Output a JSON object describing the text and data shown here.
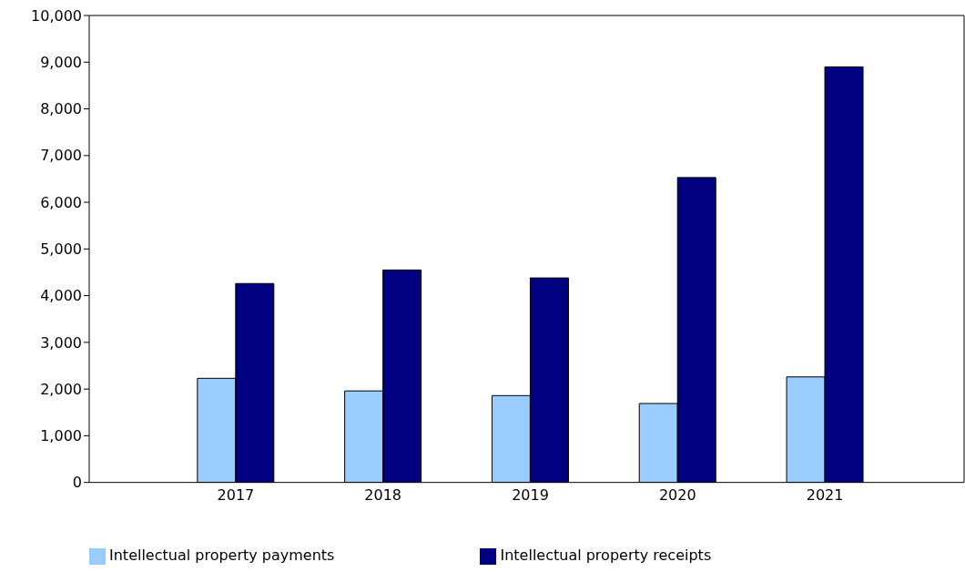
{
  "chart_data": {
    "type": "bar",
    "categories": [
      "2017",
      "2018",
      "2019",
      "2020",
      "2021"
    ],
    "series": [
      {
        "name": "Intellectual property payments",
        "color": "#99ccff",
        "values": [
          2230,
          1960,
          1860,
          1690,
          2260
        ]
      },
      {
        "name": "Intellectual property receipts",
        "color": "#000080",
        "values": [
          4260,
          4550,
          4380,
          6530,
          8900
        ]
      }
    ],
    "ylim": [
      0,
      10000
    ],
    "yticks": [
      {
        "value": 0,
        "label": "0"
      },
      {
        "value": 1000,
        "label": "1,000"
      },
      {
        "value": 2000,
        "label": "2,000"
      },
      {
        "value": 3000,
        "label": "3,000"
      },
      {
        "value": 4000,
        "label": "4,000"
      },
      {
        "value": 5000,
        "label": "5,000"
      },
      {
        "value": 6000,
        "label": "6,000"
      },
      {
        "value": 7000,
        "label": "7,000"
      },
      {
        "value": 8000,
        "label": "8,000"
      },
      {
        "value": 9000,
        "label": "9,000"
      },
      {
        "value": 10000,
        "label": "10,000"
      }
    ],
    "grid": false,
    "legend": "bottom"
  }
}
